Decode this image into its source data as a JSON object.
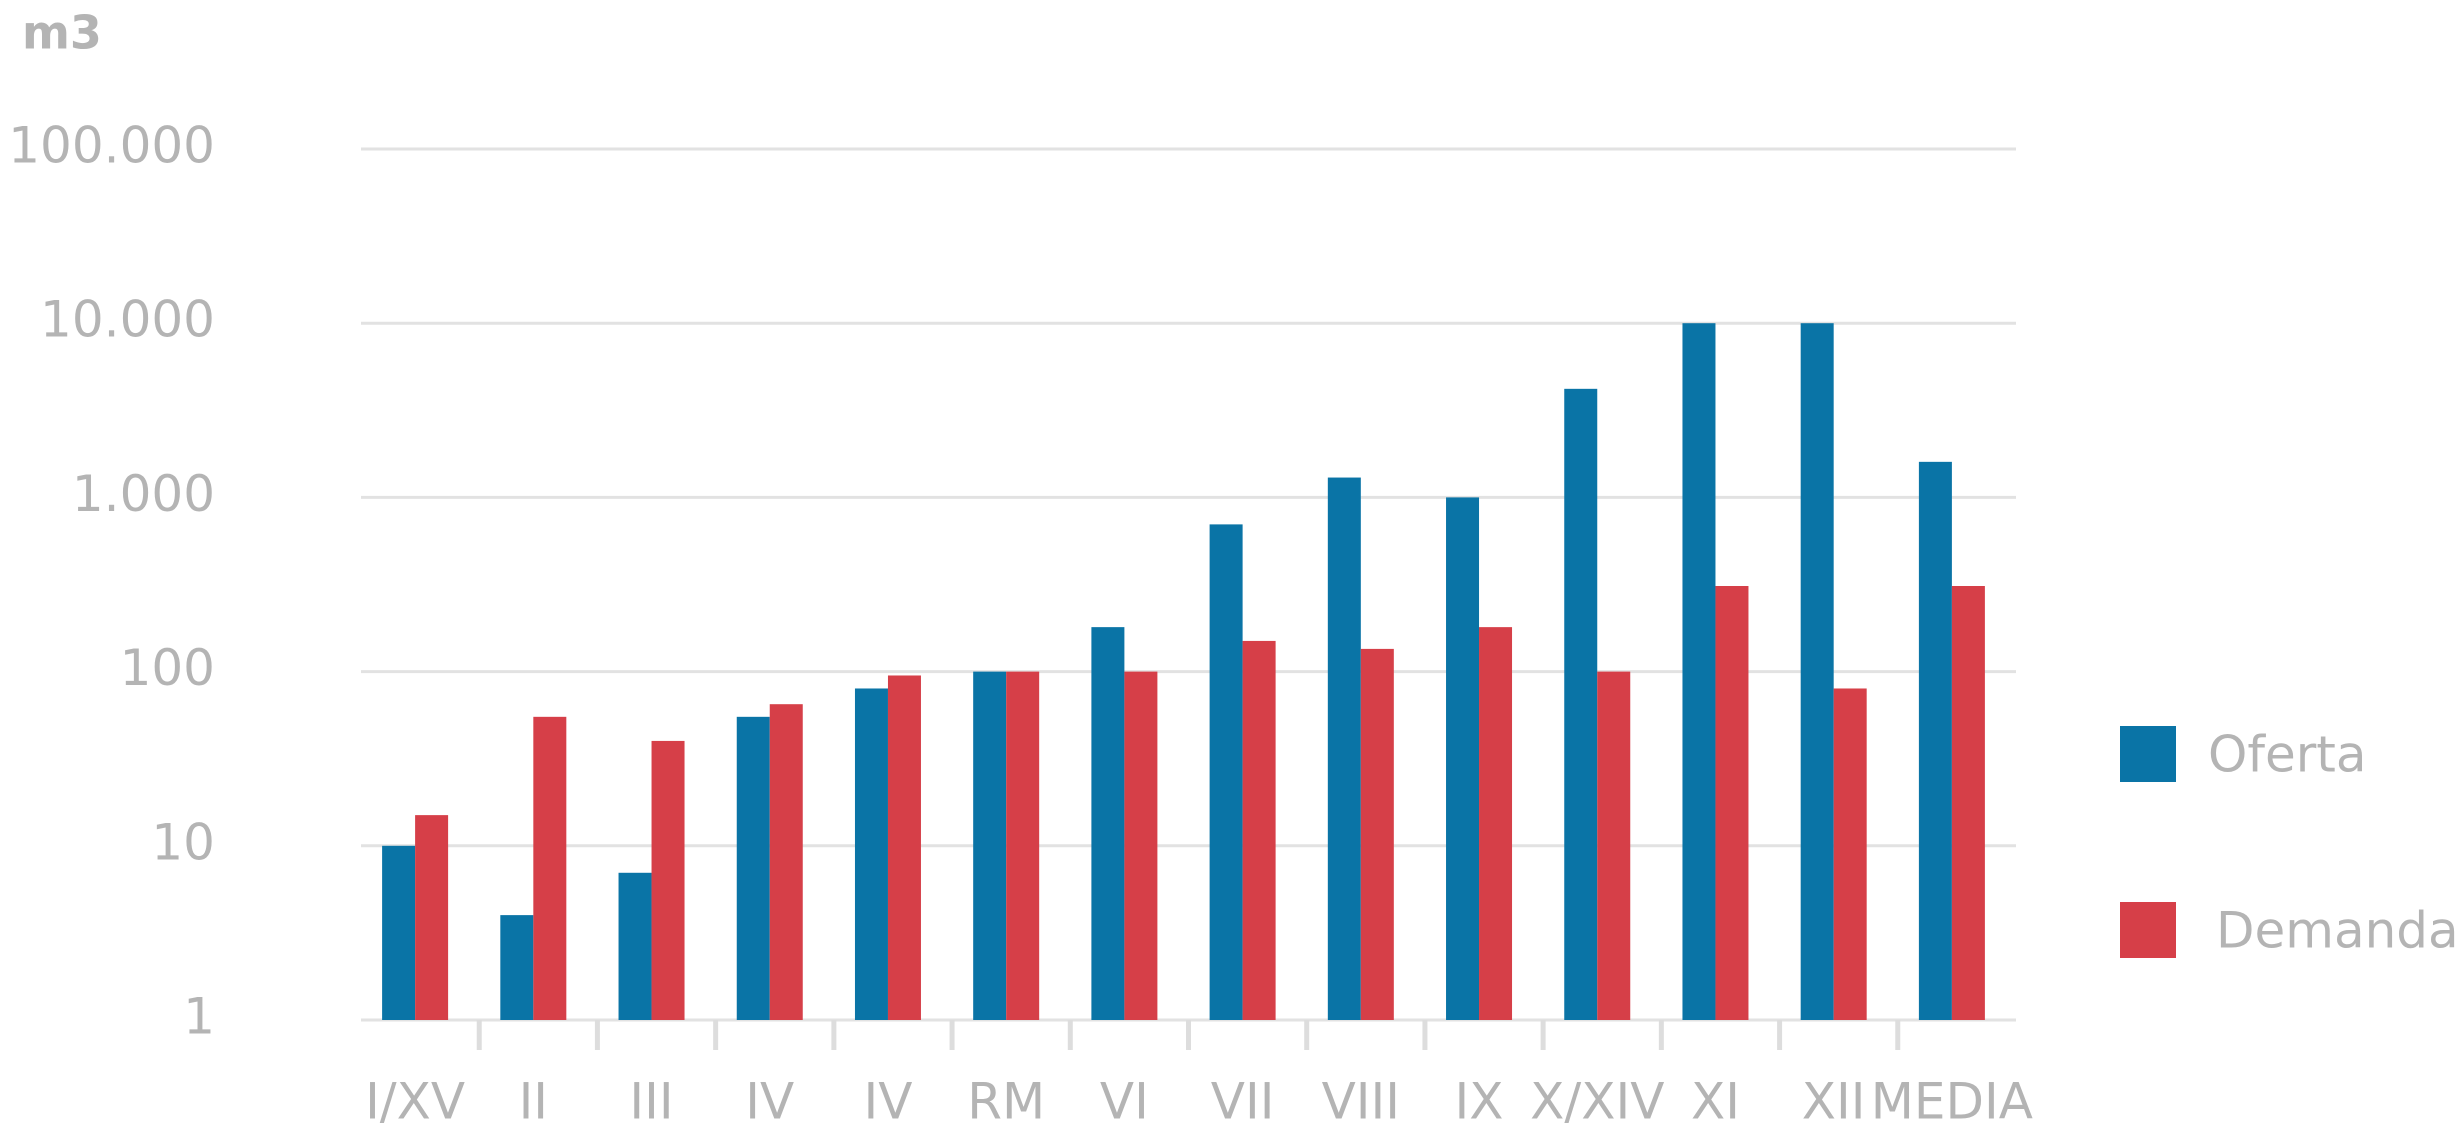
{
  "chart_data": {
    "type": "bar",
    "y_label": "m3",
    "log_scale": true,
    "grid": true,
    "legend": "right",
    "categories": [
      "I/XV",
      "II",
      "III",
      "IV",
      "IV",
      "RM",
      "VI",
      "VII",
      "VIII",
      "IX",
      "X/XIV",
      "XI",
      "XII",
      "MEDIA"
    ],
    "series": [
      {
        "name": "Oferta",
        "color": "#0a74a6",
        "values": [
          10,
          4,
          7,
          55,
          80,
          100,
          180,
          700,
          1300,
          1000,
          4200,
          10000,
          10000,
          1600
        ]
      },
      {
        "name": "Demanda",
        "color": "#d63f48",
        "values": [
          15,
          55,
          40,
          65,
          95,
          100,
          100,
          150,
          135,
          180,
          100,
          310,
          80,
          310
        ]
      }
    ],
    "ylim": [
      1,
      100000
    ],
    "yticks": [
      1,
      10,
      100,
      {
        "value": 1000,
        "label": "1.000"
      },
      {
        "value": 10000,
        "label": "10.000"
      },
      {
        "value": 100000,
        "label": "100.000"
      }
    ]
  }
}
